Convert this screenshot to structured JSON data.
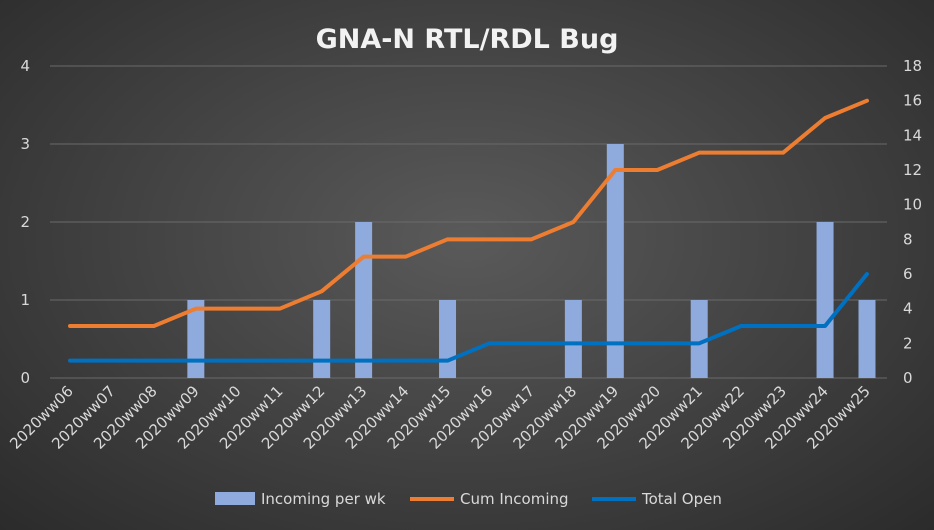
{
  "colors": {
    "bar": "#8faadc",
    "cum": "#ed7d31",
    "open": "#0070c0",
    "grid": "#6a6a6a",
    "text": "#d9d9d9"
  },
  "chart_data": {
    "type": "bar",
    "title": "GNA-N  RTL/RDL Bug",
    "categories": [
      "2020ww06",
      "2020ww07",
      "2020ww08",
      "2020ww09",
      "2020ww10",
      "2020ww11",
      "2020ww12",
      "2020ww13",
      "2020ww14",
      "2020ww15",
      "2020ww16",
      "2020ww17",
      "2020ww18",
      "2020ww19",
      "2020ww20",
      "2020ww21",
      "2020ww22",
      "2020ww23",
      "2020ww24",
      "2020ww25"
    ],
    "y_left": {
      "min": 0,
      "max": 4,
      "ticks": [
        0,
        1,
        2,
        3,
        4
      ]
    },
    "y_right": {
      "min": 0,
      "max": 18,
      "ticks": [
        0,
        2,
        4,
        6,
        8,
        10,
        12,
        14,
        16,
        18
      ]
    },
    "grid": true,
    "legend_position": "bottom",
    "series": [
      {
        "name": "Incoming per wk",
        "type": "bar",
        "axis": "left",
        "values": [
          0,
          0,
          0,
          1,
          0,
          0,
          1,
          2,
          0,
          1,
          0,
          0,
          1,
          3,
          0,
          1,
          0,
          0,
          2,
          1
        ]
      },
      {
        "name": "Cum Incoming",
        "type": "line",
        "axis": "right",
        "values": [
          3,
          3,
          3,
          4,
          4,
          4,
          5,
          7,
          7,
          8,
          8,
          8,
          9,
          12,
          12,
          13,
          13,
          13,
          15,
          16
        ]
      },
      {
        "name": "Total Open",
        "type": "line",
        "axis": "right",
        "values": [
          1,
          1,
          1,
          1,
          1,
          1,
          1,
          1,
          1,
          1,
          2,
          2,
          2,
          2,
          2,
          2,
          3,
          3,
          3,
          6
        ]
      }
    ]
  }
}
